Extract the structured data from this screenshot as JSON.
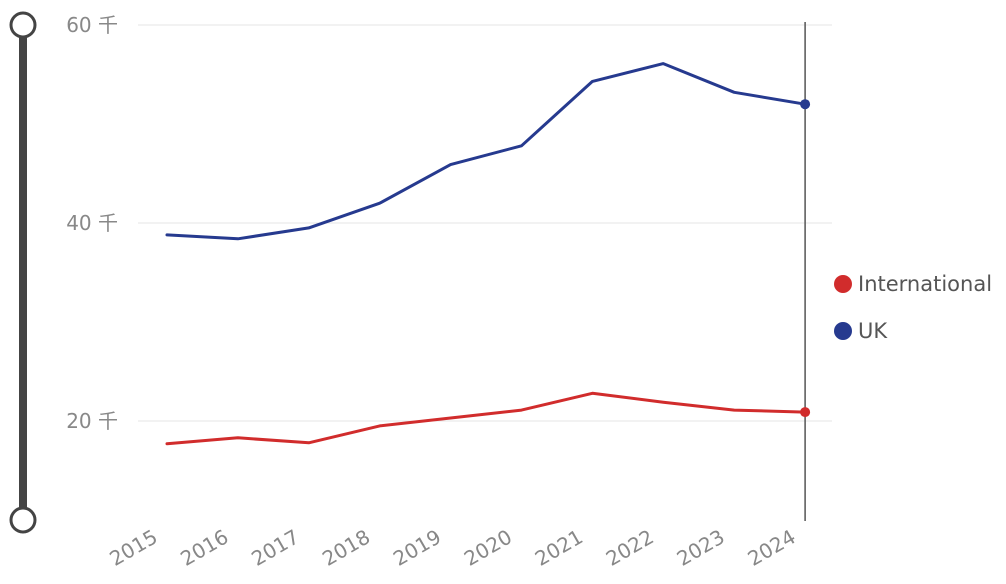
{
  "chart_data": {
    "type": "line",
    "categories": [
      "2015",
      "2016",
      "2017",
      "2018",
      "2019",
      "2020",
      "2021",
      "2022",
      "2023",
      "2024"
    ],
    "series": [
      {
        "name": "UK",
        "color": "#263a8f",
        "values": [
          38.8,
          38.4,
          39.5,
          42.0,
          45.9,
          47.8,
          54.3,
          56.1,
          53.2,
          52.0
        ]
      },
      {
        "name": "International",
        "color": "#d12c2c",
        "values": [
          17.7,
          18.3,
          17.8,
          19.5,
          20.3,
          21.1,
          22.8,
          21.9,
          21.1,
          20.9
        ]
      }
    ],
    "y_ticks": [
      "20 千",
      "40 千",
      "60 千"
    ],
    "y_tick_values": [
      20,
      40,
      60
    ],
    "ylim": [
      10,
      60
    ],
    "highlight_index": 9,
    "title": "",
    "xlabel": "",
    "ylabel": ""
  },
  "legend": {
    "items": [
      {
        "label": "International",
        "color": "#d12c2c"
      },
      {
        "label": "UK",
        "color": "#263a8f"
      }
    ]
  },
  "range_slider": {
    "value_min": 10,
    "value_max": 60
  }
}
